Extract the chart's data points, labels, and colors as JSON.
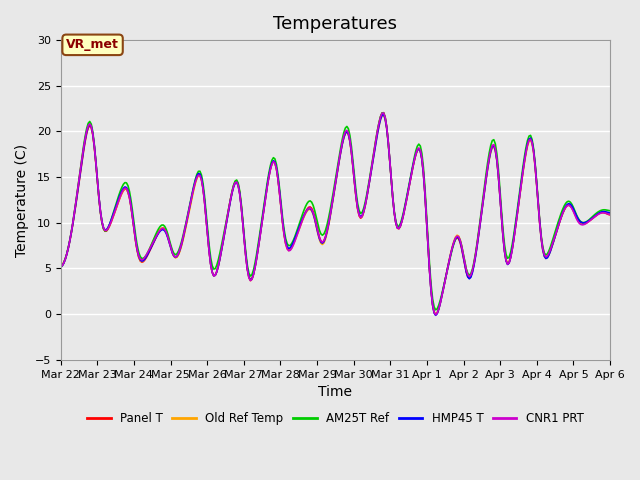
{
  "title": "Temperatures",
  "xlabel": "Time",
  "ylabel": "Temperature (C)",
  "ylim": [
    -5,
    30
  ],
  "yticks": [
    -5,
    0,
    5,
    10,
    15,
    20,
    25,
    30
  ],
  "annotation_text": "VR_met",
  "annotation_color": "#8B0000",
  "annotation_bg": "#FFFFC0",
  "annotation_border": "#8B4513",
  "bg_color": "#E8E8E8",
  "series_colors": [
    "#FF0000",
    "#FFA500",
    "#00CC00",
    "#0000FF",
    "#CC00CC"
  ],
  "series_labels": [
    "Panel T",
    "Old Ref Temp",
    "AM25T Ref",
    "HMP45 T",
    "CNR1 PRT"
  ],
  "n_points": 360,
  "x_start": 22,
  "x_end": 37,
  "xtick_positions": [
    22,
    23,
    24,
    25,
    26,
    27,
    28,
    29,
    30,
    31,
    32,
    33,
    34,
    35,
    36,
    37
  ],
  "xtick_labels": [
    "Mar 22",
    "Mar 23",
    "Mar 24",
    "Mar 25",
    "Mar 26",
    "Mar 27",
    "Mar 28",
    "Mar 29",
    "Mar 30",
    "Mar 31",
    "Apr 1",
    "Apr 2",
    "Apr 3",
    "Apr 4",
    "Apr 5",
    "Apr 6"
  ],
  "grid_color": "#FFFFFF",
  "title_fontsize": 13,
  "axis_fontsize": 10,
  "tick_fontsize": 8
}
